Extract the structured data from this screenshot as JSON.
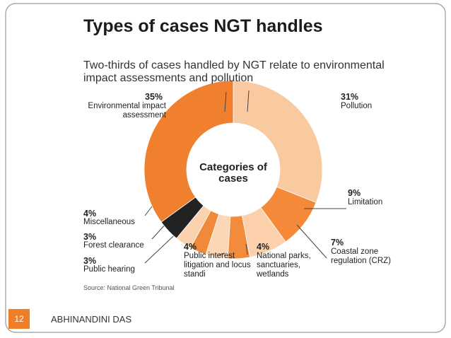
{
  "slide": {
    "number": "12",
    "author": "ABHINANDINI DAS"
  },
  "chart_data": {
    "type": "pie",
    "title": "Types of cases NGT handles",
    "subtitle": "Two-thirds of cases handled by NGT relate to environmental impact assessments and pollution",
    "center_label": "Categories of cases",
    "source": "Source: National Green Tribunal",
    "categories": [
      "Pollution",
      "Limitation",
      "Coastal zone regulation (CRZ)",
      "National parks, sanctuaries, wetlands",
      "Public interest litigation and locus standi",
      "Public hearing",
      "Forest clearance",
      "Miscellaneous",
      "Environmental impact assessment"
    ],
    "values": [
      31,
      9,
      7,
      4,
      4,
      3,
      3,
      4,
      35
    ],
    "value_labels": [
      "31%",
      "9%",
      "7%",
      "4%",
      "4%",
      "3%",
      "3%",
      "4%",
      "35%"
    ],
    "colors": [
      "#f9c9a0",
      "#f5893a",
      "#fbd0aa",
      "#f38b3c",
      "#fcd6b5",
      "#f08a3a",
      "#fbd2ae",
      "#222222",
      "#f07f2e"
    ]
  }
}
